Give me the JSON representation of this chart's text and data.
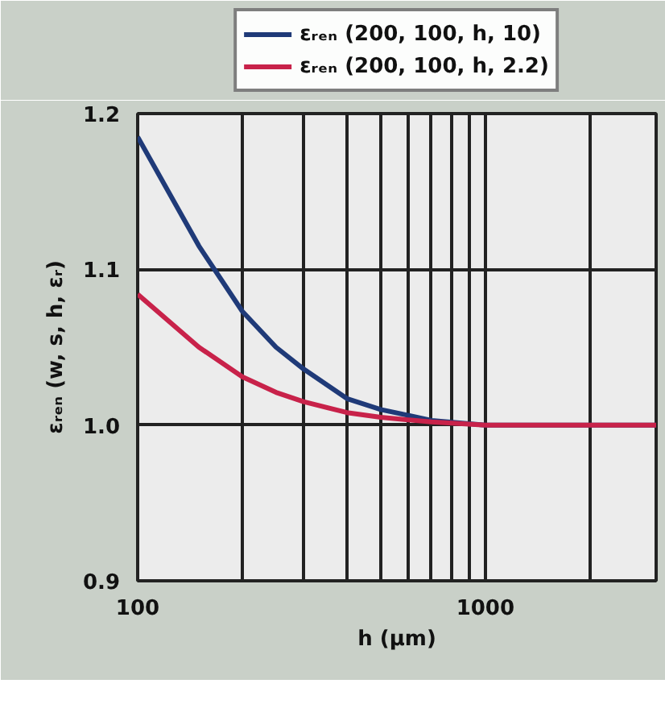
{
  "chart_data": {
    "type": "line",
    "xlabel": "h (μm)",
    "ylabel": "εᵣₑₙ (w, s, h, εᵣ)",
    "log": "x",
    "xlim": [
      100,
      3100
    ],
    "ylim": [
      0.9,
      1.2
    ],
    "xticks": [
      100,
      {
        "value": 200,
        "label": null
      },
      {
        "value": 300,
        "label": null
      },
      {
        "value": 400,
        "label": null
      },
      {
        "value": 500,
        "label": null
      },
      {
        "value": 600,
        "label": null
      },
      {
        "value": 700,
        "label": null
      },
      {
        "value": 800,
        "label": null
      },
      {
        "value": 900,
        "label": null
      },
      1000,
      {
        "value": 2000,
        "label": null
      }
    ],
    "yticks": [
      0.9,
      {
        "value": 1.0,
        "label": "1.0"
      },
      1.1,
      1.2
    ],
    "grid": true,
    "legend": "top",
    "marker": "none",
    "line_style": "solid",
    "x": [
      100,
      150,
      200,
      250,
      300,
      400,
      500,
      700,
      1000,
      2000,
      3100
    ],
    "series": [
      {
        "name": "εᵣₑₙ (200, 100, h, 10)",
        "color": "#1f3a78",
        "values": [
          1.185,
          1.115,
          1.073,
          1.05,
          1.036,
          1.017,
          1.01,
          1.003,
          1.0,
          1.0,
          1.0
        ]
      },
      {
        "name": "εᵣₑₙ (200, 100, h, 2.2)",
        "color": "#c8224a",
        "values": [
          1.084,
          1.05,
          1.031,
          1.021,
          1.015,
          1.008,
          1.005,
          1.002,
          1.0,
          1.0,
          1.0
        ]
      }
    ]
  }
}
